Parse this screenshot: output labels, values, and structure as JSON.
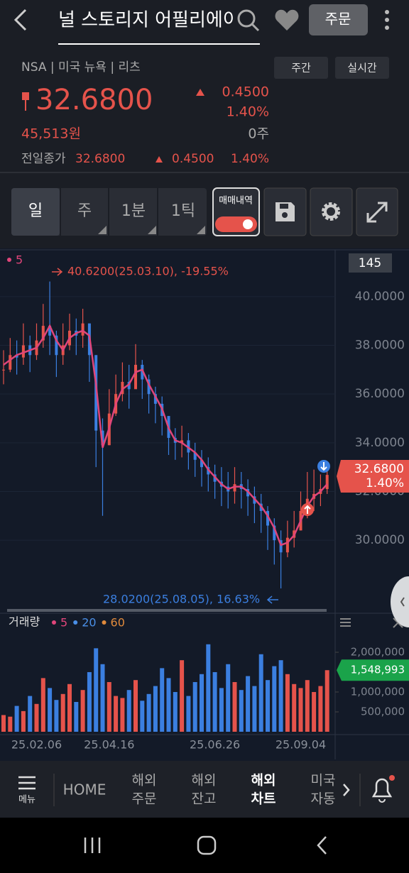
{
  "header": {
    "title": "널 스토리지 어필리에이트",
    "order_button": "주문"
  },
  "info": {
    "market": "NSA | 미국 뉴욕 | 리츠",
    "buttons": [
      "주간",
      "실시간"
    ],
    "price": "32.6800",
    "change": "0.4500",
    "change_pct": "1.40%",
    "krw": "45,513원",
    "qty": "0주",
    "prev_close_label": "전일종가",
    "prev_close": "32.6800",
    "prev_change": "0.4500",
    "prev_change_pct": "1.40%"
  },
  "toolbar": {
    "tabs": [
      "일",
      "주",
      "1분",
      "1틱"
    ],
    "trade_history": "매매내역"
  },
  "chart_data": [
    {
      "type": "candlestick",
      "counter": "145",
      "max_label": "40.6200(25.03.10), -19.55%",
      "min_label": "28.0200(25.08.05), 16.63%",
      "series": [
        {
          "name": "5",
          "color": "#e0457a",
          "values": [
            37.2,
            37.4,
            37.6,
            37.7,
            37.8,
            37.9,
            38.3,
            38.8,
            38.2,
            37.8,
            38.3,
            38.5,
            38.6,
            38.4,
            36.4,
            33.8,
            34.6,
            35.6,
            36.2,
            36.4,
            36.9,
            37.0,
            36.4,
            35.9,
            35.4,
            34.6,
            34.1,
            34.0,
            33.8,
            33.6,
            33.3,
            32.9,
            32.6,
            32.3,
            32.1,
            32.2,
            32.2,
            32.0,
            31.7,
            31.4,
            31.0,
            30.5,
            29.8,
            29.9,
            30.2,
            30.8,
            31.4,
            31.8,
            32.0,
            32.3
          ]
        }
      ],
      "close": [
        37.0,
        37.6,
        37.5,
        38.0,
        37.6,
        38.2,
        38.8,
        38.4,
        37.6,
        38.0,
        38.6,
        38.4,
        38.9,
        37.6,
        34.5,
        33.9,
        35.2,
        36.0,
        36.5,
        36.2,
        37.2,
        36.6,
        36.0,
        35.6,
        35.1,
        34.2,
        34.0,
        34.1,
        33.6,
        33.3,
        33.0,
        32.7,
        32.4,
        32.2,
        32.0,
        32.3,
        32.1,
        31.8,
        31.5,
        31.2,
        30.6,
        30.0,
        29.5,
        30.1,
        30.4,
        31.2,
        31.7,
        31.9,
        32.1,
        32.68
      ],
      "high": [
        37.8,
        38.3,
        38.2,
        38.9,
        38.4,
        38.9,
        39.7,
        40.62,
        38.6,
        38.9,
        39.3,
        39.1,
        39.5,
        38.8,
        36.3,
        35.0,
        36.2,
        36.8,
        37.3,
        37.2,
        38.05,
        37.4,
        36.8,
        36.3,
        35.9,
        35.0,
        34.6,
        34.7,
        34.4,
        34.0,
        33.7,
        33.4,
        33.1,
        33.0,
        32.8,
        33.0,
        32.8,
        32.5,
        32.2,
        31.9,
        31.4,
        30.9,
        30.4,
        30.8,
        31.2,
        32.0,
        32.8,
        32.9,
        32.7,
        33.1
      ],
      "low": [
        36.4,
        36.9,
        36.8,
        37.2,
        36.9,
        37.4,
        37.9,
        37.6,
        36.7,
        37.2,
        37.8,
        37.6,
        37.9,
        36.5,
        33.0,
        31.0,
        33.9,
        35.1,
        35.7,
        35.4,
        36.3,
        35.8,
        35.2,
        34.8,
        34.3,
        33.5,
        33.3,
        33.4,
        32.9,
        32.6,
        32.2,
        32.0,
        31.7,
        31.4,
        31.3,
        31.5,
        31.3,
        31.0,
        30.7,
        30.3,
        29.6,
        29.0,
        28.02,
        29.3,
        29.7,
        30.4,
        30.9,
        31.2,
        31.4,
        31.9
      ],
      "up_color": "#e5534b",
      "down_color": "#3b7fe0",
      "ylim": [
        27.06,
        41.92
      ],
      "yticks": [
        {
          "value": 30,
          "label": "30.0000"
        },
        {
          "value": 32,
          "label": "32.0000"
        },
        {
          "value": 34,
          "label": "34.0000"
        },
        {
          "value": 36,
          "label": "36.0000"
        },
        {
          "value": 38,
          "label": "38.0000"
        },
        {
          "value": 40,
          "label": "40.0000"
        }
      ],
      "grid": true
    },
    {
      "type": "bar",
      "title": "거래량",
      "legend": [
        {
          "name": "5",
          "color": "#e0457a"
        },
        {
          "name": "20",
          "color": "#4a8fe7"
        },
        {
          "name": "60",
          "color": "#e08a3c"
        }
      ],
      "categories": [
        null,
        null,
        null,
        null,
        null,
        "25.02.06",
        null,
        null,
        null,
        null,
        null,
        null,
        null,
        null,
        null,
        null,
        "25.04.16",
        null,
        null,
        null,
        null,
        null,
        null,
        null,
        null,
        null,
        null,
        null,
        null,
        null,
        null,
        null,
        "25.06.26",
        null,
        null,
        null,
        null,
        null,
        null,
        null,
        null,
        null,
        null,
        null,
        null,
        "25.09.04",
        null,
        null,
        null,
        null
      ],
      "values": [
        420000,
        380000,
        650000,
        520000,
        900000,
        700000,
        1350000,
        1100000,
        800000,
        950000,
        1200000,
        750000,
        1050000,
        1500000,
        2100000,
        1700000,
        1250000,
        900000,
        850000,
        1050000,
        1300000,
        780000,
        950000,
        1150000,
        1600000,
        1350000,
        1000000,
        1800000,
        900000,
        1250000,
        1450000,
        2200000,
        1500000,
        1100000,
        1700000,
        1250000,
        1050000,
        1400000,
        1150000,
        1950000,
        1300000,
        1650000,
        1800000,
        1450000,
        1200000,
        1100000,
        1300000,
        1000000,
        1150000,
        1548993
      ],
      "value_labels": [
        null,
        null,
        null,
        null,
        null,
        null,
        null,
        null,
        null,
        null,
        null,
        null,
        null,
        null,
        null,
        null,
        null,
        null,
        null,
        null,
        null,
        null,
        null,
        null,
        null,
        null,
        null,
        null,
        null,
        null,
        null,
        null,
        null,
        null,
        null,
        null,
        null,
        null,
        null,
        null,
        null,
        null,
        null,
        null,
        null,
        null,
        null,
        null,
        null,
        "1,548,993"
      ],
      "ylim": [
        0,
        2910000
      ],
      "yticks": [
        {
          "value": 500000,
          "label": "500,000"
        },
        {
          "value": 1000000,
          "label": "1,000,000"
        },
        {
          "value": 2000000,
          "label": "2,000,000"
        }
      ]
    }
  ],
  "nav": {
    "menu": "메뉴",
    "home": "HOME",
    "items": [
      [
        "해외",
        "주문"
      ],
      [
        "해외",
        "잔고"
      ],
      [
        "해외",
        "차트"
      ],
      [
        "미국",
        "자동"
      ]
    ]
  }
}
